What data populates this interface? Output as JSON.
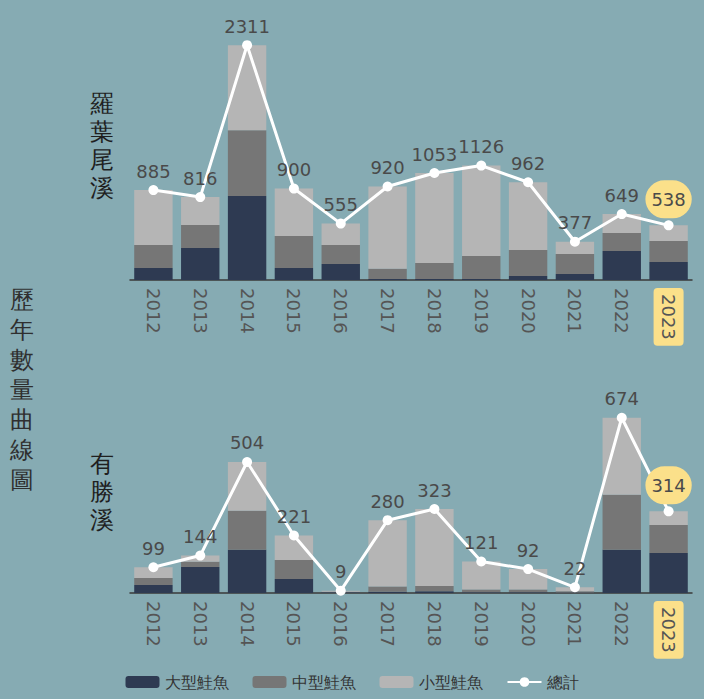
{
  "title": "歷年數量曲線圖",
  "chart_data": [
    {
      "type": "bar",
      "title": "羅葉尾溪",
      "stacked": true,
      "grid": false,
      "tick_labels": "x",
      "categories": [
        "2012",
        "2013",
        "2014",
        "2015",
        "2016",
        "2017",
        "2018",
        "2019",
        "2020",
        "2021",
        "2022",
        "2023"
      ],
      "ylim": [
        0,
        2500
      ],
      "series": [
        {
          "name": "大型鮭魚",
          "color": "#2e3a52",
          "values": [
            118,
            315,
            826,
            118,
            157,
            10,
            10,
            10,
            40,
            60,
            285,
            177
          ]
        },
        {
          "name": "中型鮭魚",
          "color": "#767676",
          "values": [
            226,
            226,
            649,
            315,
            187,
            100,
            157,
            226,
            255,
            196,
            177,
            206
          ]
        },
        {
          "name": "小型鮭魚",
          "color": "#b5b5b5",
          "values": [
            541,
            275,
            836,
            467,
            211,
            810,
            886,
            890,
            667,
            121,
            187,
            155
          ]
        },
        {
          "name": "總計",
          "type": "line",
          "color": "#ffffff",
          "marker": "circle",
          "data_labels": true,
          "values": [
            885,
            816,
            2311,
            900,
            555,
            920,
            1053,
            1126,
            962,
            377,
            649,
            538
          ]
        }
      ]
    },
    {
      "type": "bar",
      "title": "有勝溪",
      "stacked": true,
      "grid": false,
      "tick_labels": "x",
      "legend": "bottom",
      "categories": [
        "2012",
        "2013",
        "2014",
        "2015",
        "2016",
        "2017",
        "2018",
        "2019",
        "2020",
        "2021",
        "2022",
        "2023"
      ],
      "ylim": [
        0,
        750
      ],
      "series": [
        {
          "name": "大型鮭魚",
          "color": "#2e3a52",
          "values": [
            31,
            100,
            166,
            54,
            3,
            5,
            7,
            3,
            3,
            2,
            166,
            154
          ]
        },
        {
          "name": "中型鮭魚",
          "color": "#767676",
          "values": [
            27,
            20,
            150,
            73,
            2,
            20,
            20,
            10,
            10,
            5,
            212,
            108
          ]
        },
        {
          "name": "小型鮭魚",
          "color": "#b5b5b5",
          "values": [
            41,
            24,
            188,
            94,
            4,
            255,
            296,
            108,
            79,
            15,
            296,
            52
          ]
        },
        {
          "name": "總計",
          "type": "line",
          "color": "#ffffff",
          "marker": "circle",
          "data_labels": true,
          "values": [
            99,
            144,
            504,
            221,
            9,
            280,
            323,
            121,
            92,
            22,
            674,
            314
          ]
        }
      ]
    }
  ]
}
